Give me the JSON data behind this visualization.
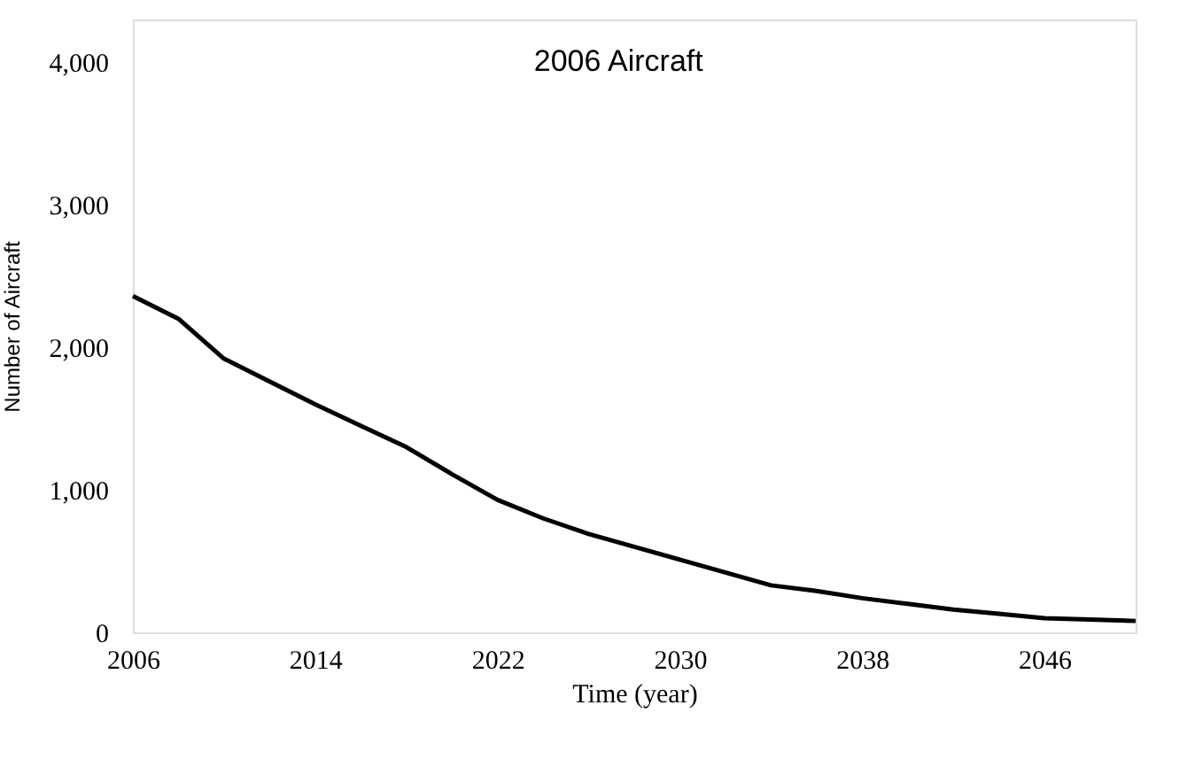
{
  "chart_data": {
    "type": "line",
    "title": "2006 Aircraft",
    "xlabel": "Time (year)",
    "ylabel": "Number of Aircraft",
    "x": [
      2006,
      2008,
      2010,
      2012,
      2014,
      2016,
      2018,
      2020,
      2022,
      2024,
      2026,
      2028,
      2030,
      2032,
      2034,
      2036,
      2038,
      2040,
      2042,
      2044,
      2046,
      2048,
      2050
    ],
    "series": [
      {
        "color": "#000000",
        "values": [
          2360,
          2200,
          1920,
          1760,
          1600,
          1450,
          1300,
          1110,
          930,
          800,
          690,
          600,
          510,
          420,
          330,
          290,
          240,
          200,
          160,
          130,
          100,
          90,
          80
        ]
      }
    ],
    "xlim": [
      2006,
      2050
    ],
    "xticks": [
      2006,
      2014,
      2022,
      2030,
      2038,
      2046
    ],
    "ylim": [
      0,
      4300
    ],
    "yticks": [
      0,
      {
        "value": 1000,
        "label": "1,000"
      },
      {
        "value": 2000,
        "label": "2,000"
      },
      {
        "value": 3000,
        "label": "3,000"
      },
      {
        "value": 4000,
        "label": "4,000"
      }
    ],
    "grid": false,
    "legend": false
  }
}
